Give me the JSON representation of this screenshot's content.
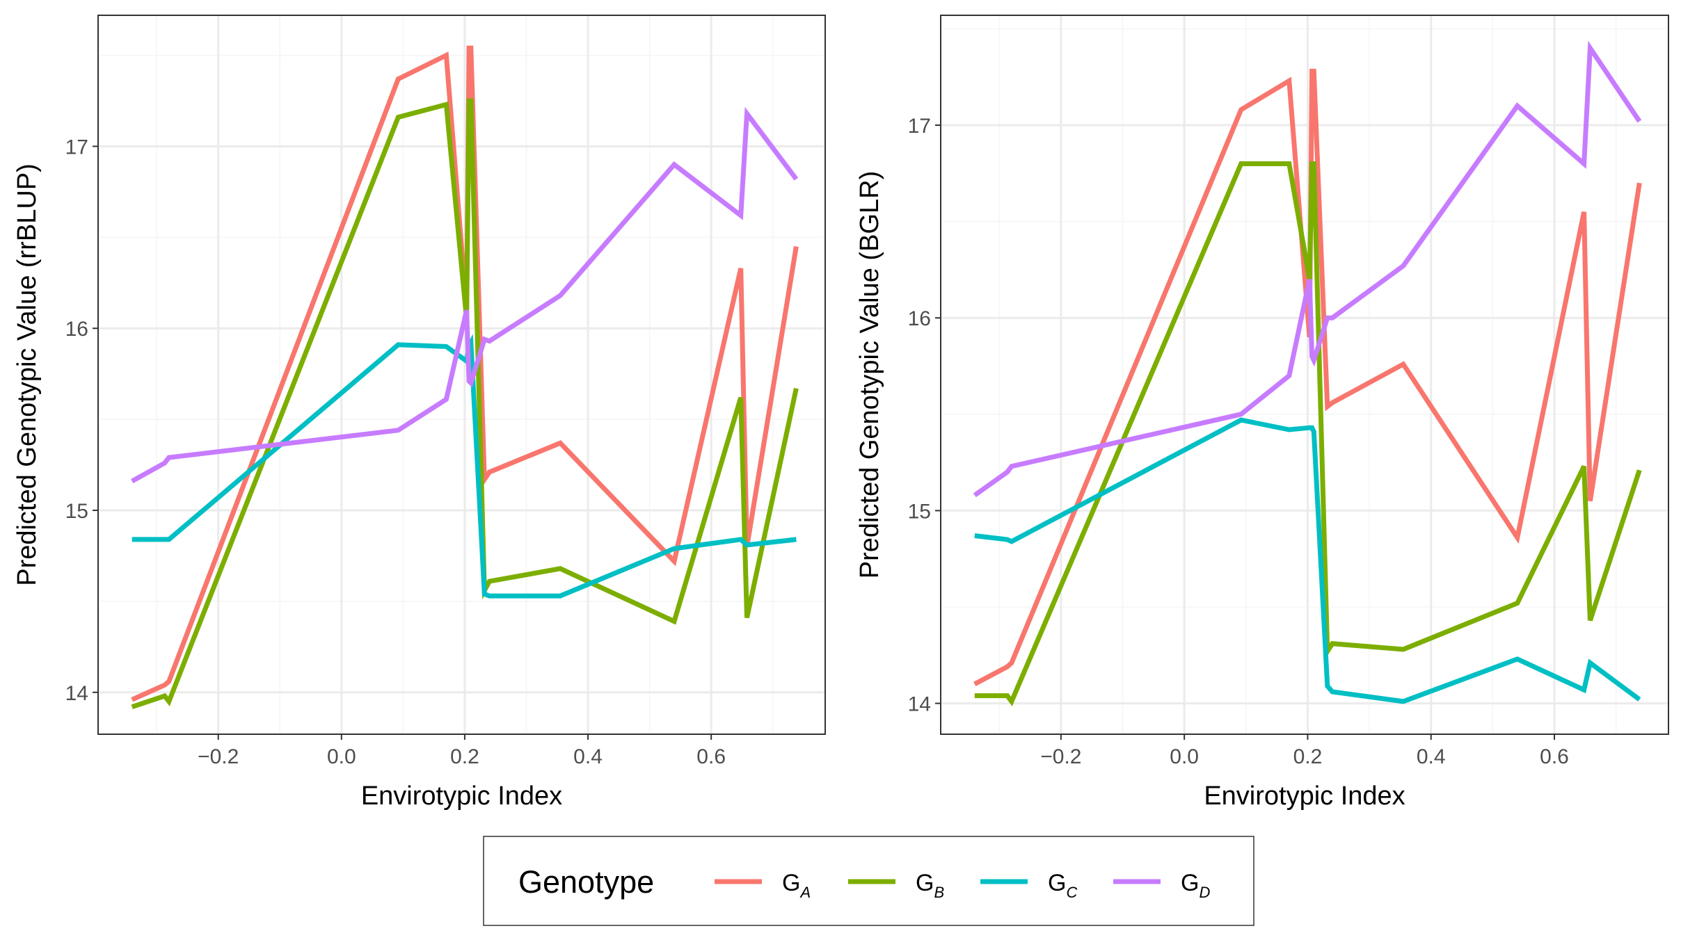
{
  "chart_data": [
    {
      "type": "line",
      "ylabel": "Predicted Genotypic Value (rrBLUP)",
      "xlabel": "Envirotypic Index",
      "xlim": [
        -0.395,
        0.785
      ],
      "ylim": [
        13.77,
        17.72
      ],
      "xticks": [
        -0.2,
        0.0,
        0.2,
        0.4,
        0.6
      ],
      "xtick_labels": [
        "−0.2",
        "0.0",
        "0.2",
        "0.4",
        "0.6"
      ],
      "yticks": [
        14,
        15,
        16,
        17
      ],
      "ytick_labels": [
        "14",
        "15",
        "16",
        "17"
      ],
      "grid": true,
      "series": [
        {
          "name": "G_A",
          "x": [
            -0.34,
            -0.287,
            -0.28,
            0.092,
            0.17,
            0.203,
            0.207,
            0.21,
            0.232,
            0.24,
            0.355,
            0.54,
            0.648,
            0.658,
            0.738
          ],
          "y": [
            13.96,
            14.04,
            14.06,
            17.37,
            17.5,
            16.1,
            17.54,
            17.54,
            15.17,
            15.21,
            15.37,
            14.72,
            16.33,
            14.8,
            16.45
          ]
        },
        {
          "name": "G_B",
          "x": [
            -0.34,
            -0.287,
            -0.28,
            0.092,
            0.17,
            0.203,
            0.207,
            0.21,
            0.232,
            0.24,
            0.355,
            0.54,
            0.648,
            0.658,
            0.738
          ],
          "y": [
            13.92,
            13.98,
            13.95,
            17.16,
            17.23,
            16.05,
            17.25,
            17.25,
            14.56,
            14.61,
            14.68,
            14.39,
            15.62,
            14.41,
            15.67
          ]
        },
        {
          "name": "G_C",
          "x": [
            -0.34,
            -0.287,
            -0.28,
            0.092,
            0.17,
            0.203,
            0.207,
            0.21,
            0.232,
            0.24,
            0.355,
            0.54,
            0.648,
            0.658,
            0.738
          ],
          "y": [
            14.84,
            14.84,
            14.84,
            15.91,
            15.9,
            15.82,
            15.9,
            15.92,
            14.54,
            14.53,
            14.53,
            14.79,
            14.84,
            14.81,
            14.84
          ]
        },
        {
          "name": "G_D",
          "x": [
            -0.34,
            -0.287,
            -0.28,
            0.092,
            0.17,
            0.203,
            0.207,
            0.21,
            0.232,
            0.24,
            0.355,
            0.54,
            0.648,
            0.658,
            0.738
          ],
          "y": [
            15.16,
            15.26,
            15.29,
            15.44,
            15.61,
            16.1,
            15.71,
            15.7,
            15.94,
            15.93,
            16.18,
            16.9,
            16.62,
            17.18,
            16.82
          ]
        }
      ]
    },
    {
      "type": "line",
      "ylabel": "Predicted Genotypic Value (BGLR)",
      "xlabel": "Envirotypic Index",
      "xlim": [
        -0.395,
        0.785
      ],
      "ylim": [
        13.84,
        17.57
      ],
      "xticks": [
        -0.2,
        0.0,
        0.2,
        0.4,
        0.6
      ],
      "xtick_labels": [
        "−0.2",
        "0.0",
        "0.2",
        "0.4",
        "0.6"
      ],
      "yticks": [
        14,
        15,
        16,
        17
      ],
      "ytick_labels": [
        "14",
        "15",
        "16",
        "17"
      ],
      "grid": true,
      "series": [
        {
          "name": "G_A",
          "x": [
            -0.34,
            -0.287,
            -0.28,
            0.092,
            0.17,
            0.203,
            0.207,
            0.21,
            0.232,
            0.24,
            0.355,
            0.54,
            0.648,
            0.658,
            0.738
          ],
          "y": [
            14.1,
            14.19,
            14.21,
            17.08,
            17.23,
            15.9,
            17.28,
            17.28,
            15.54,
            15.56,
            15.76,
            14.86,
            16.55,
            15.05,
            16.7
          ]
        },
        {
          "name": "G_B",
          "x": [
            -0.34,
            -0.287,
            -0.28,
            0.092,
            0.17,
            0.203,
            0.207,
            0.21,
            0.232,
            0.24,
            0.355,
            0.54,
            0.648,
            0.658,
            0.738
          ],
          "y": [
            14.04,
            14.04,
            14.01,
            16.8,
            16.8,
            16.2,
            16.8,
            16.8,
            14.27,
            14.31,
            14.28,
            14.52,
            15.23,
            14.43,
            15.21
          ]
        },
        {
          "name": "G_C",
          "x": [
            -0.34,
            -0.287,
            -0.28,
            0.092,
            0.17,
            0.203,
            0.207,
            0.21,
            0.232,
            0.24,
            0.355,
            0.54,
            0.648,
            0.658,
            0.738
          ],
          "y": [
            14.87,
            14.85,
            14.84,
            15.47,
            15.42,
            15.43,
            15.43,
            15.41,
            14.09,
            14.06,
            14.01,
            14.23,
            14.07,
            14.21,
            14.02
          ]
        },
        {
          "name": "G_D",
          "x": [
            -0.34,
            -0.287,
            -0.28,
            0.092,
            0.17,
            0.203,
            0.207,
            0.21,
            0.232,
            0.24,
            0.355,
            0.54,
            0.648,
            0.658,
            0.738
          ],
          "y": [
            15.08,
            15.2,
            15.23,
            15.5,
            15.7,
            16.2,
            15.8,
            15.78,
            16.0,
            16.0,
            16.27,
            17.1,
            16.8,
            17.4,
            17.02
          ]
        }
      ]
    }
  ],
  "legend": {
    "title": "Genotype",
    "placement": "bottom",
    "items": [
      {
        "base": "G",
        "sub": "A",
        "color": "#F8766D"
      },
      {
        "base": "G",
        "sub": "B",
        "color": "#7CAE00"
      },
      {
        "base": "G",
        "sub": "C",
        "color": "#00BFC4"
      },
      {
        "base": "G",
        "sub": "D",
        "color": "#C77CFF"
      }
    ]
  },
  "colors": {
    "G_A": "#F8766D",
    "G_B": "#7CAE00",
    "G_C": "#00BFC4",
    "G_D": "#C77CFF",
    "grid_major": "#ebebeb",
    "grid_minor": "#f5f5f5",
    "panel_border": "#333333",
    "tick_text": "#4d4d4d"
  }
}
